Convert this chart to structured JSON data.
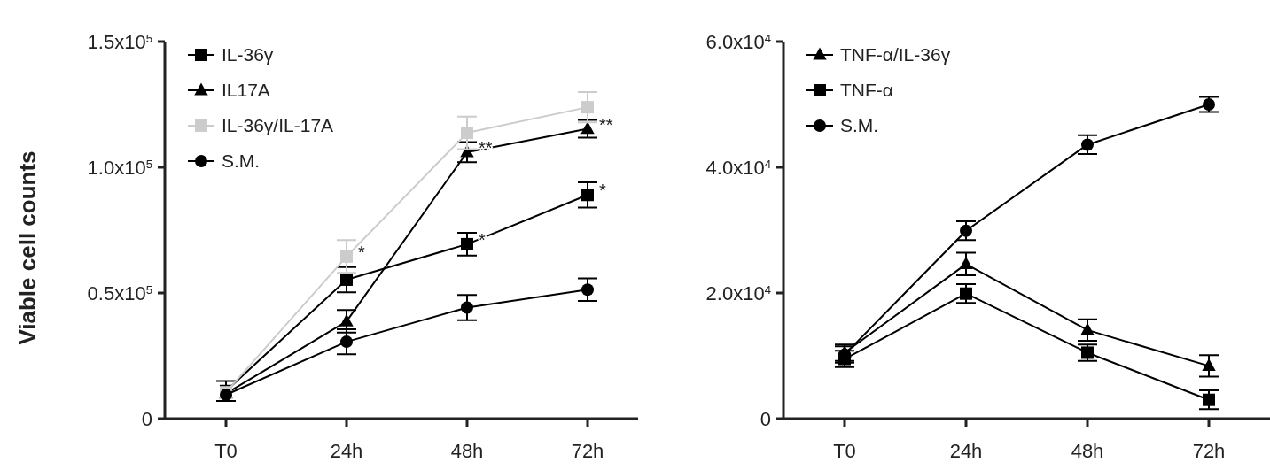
{
  "chart_data": [
    {
      "type": "line",
      "ylabel": "Viable cell counts",
      "categories": [
        "T0",
        "24h",
        "48h",
        "72h"
      ],
      "ylim": [
        0,
        150000
      ],
      "yticks": [
        {
          "value": 0,
          "label": "0"
        },
        {
          "value": 50000,
          "label": "0.5x10$^{5}$"
        },
        {
          "value": 100000,
          "label": "1.0x10$^{5}$"
        },
        {
          "value": 150000,
          "label": "1.5x10$^{5}$"
        }
      ],
      "legend": "top left",
      "grid": false,
      "series": [
        {
          "name": "IL-36γ",
          "color": "#000000",
          "marker": "square",
          "values": [
            11000,
            55300,
            69400,
            89000
          ],
          "errors": [
            4000,
            5000,
            4500,
            5000
          ]
        },
        {
          "name": "IL17A",
          "color": "#000000",
          "marker": "triangle",
          "values": [
            10000,
            38700,
            106000,
            115300
          ],
          "errors": [
            null,
            4500,
            4000,
            3500
          ]
        },
        {
          "name": "IL-36γ/IL-17A",
          "color": "#cccccc",
          "marker": "square",
          "values": [
            10500,
            64500,
            113700,
            123900
          ],
          "errors": [
            null,
            6500,
            6500,
            6000
          ]
        },
        {
          "name": "S.M.",
          "color": "#000000",
          "marker": "circle",
          "values": [
            9500,
            30600,
            44200,
            51300
          ],
          "errors": [
            null,
            5000,
            5000,
            4500
          ]
        }
      ],
      "annotations": [
        {
          "text": "*",
          "x": "24h",
          "y": 64500
        },
        {
          "text": "*",
          "x": "48h",
          "y": 69400
        },
        {
          "text": "*",
          "x": "72h",
          "y": 89000
        },
        {
          "text": "**",
          "x": "48h",
          "y": 106000
        },
        {
          "text": "**",
          "x": "72h",
          "y": 115300
        }
      ]
    },
    {
      "type": "line",
      "categories": [
        "T0",
        "24h",
        "48h",
        "72h"
      ],
      "ylim": [
        0,
        60000
      ],
      "yticks": [
        {
          "value": 0,
          "label": "0"
        },
        {
          "value": 20000,
          "label": "2.0x10$^{4}$"
        },
        {
          "value": 40000,
          "label": "4.0x10$^{4}$"
        },
        {
          "value": 60000,
          "label": "6.0x10$^{4}$"
        }
      ],
      "legend": "top left",
      "grid": false,
      "series": [
        {
          "name": "TNF-α/IL-36γ",
          "color": "#000000",
          "marker": "triangle",
          "values": [
            10500,
            24600,
            14100,
            8400
          ],
          "errors": [
            1300,
            1800,
            1700,
            1700
          ]
        },
        {
          "name": "TNF-α",
          "color": "#000000",
          "marker": "square",
          "values": [
            9500,
            19900,
            10500,
            3000
          ],
          "errors": [
            1300,
            1500,
            1300,
            1500
          ]
        },
        {
          "name": "S.M.",
          "color": "#000000",
          "marker": "circle",
          "values": [
            10200,
            29900,
            43600,
            50000
          ],
          "errors": [
            1300,
            1500,
            1500,
            1200
          ]
        }
      ]
    }
  ]
}
